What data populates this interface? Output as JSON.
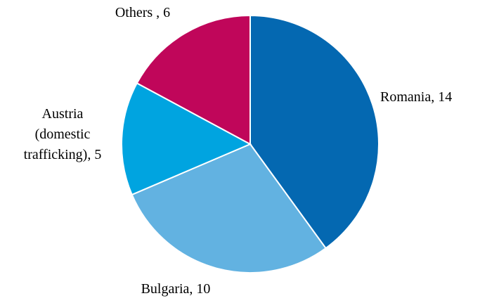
{
  "chart_data": {
    "type": "pie",
    "categories": [
      "Romania, 14",
      "Bulgaria, 10",
      "Austria (domestic trafficking), 5",
      "Others , 6"
    ],
    "values": [
      14,
      10,
      5,
      6
    ],
    "colors": [
      "#0468b1",
      "#62b2e1",
      "#00a4e0",
      "#c0065a"
    ]
  }
}
